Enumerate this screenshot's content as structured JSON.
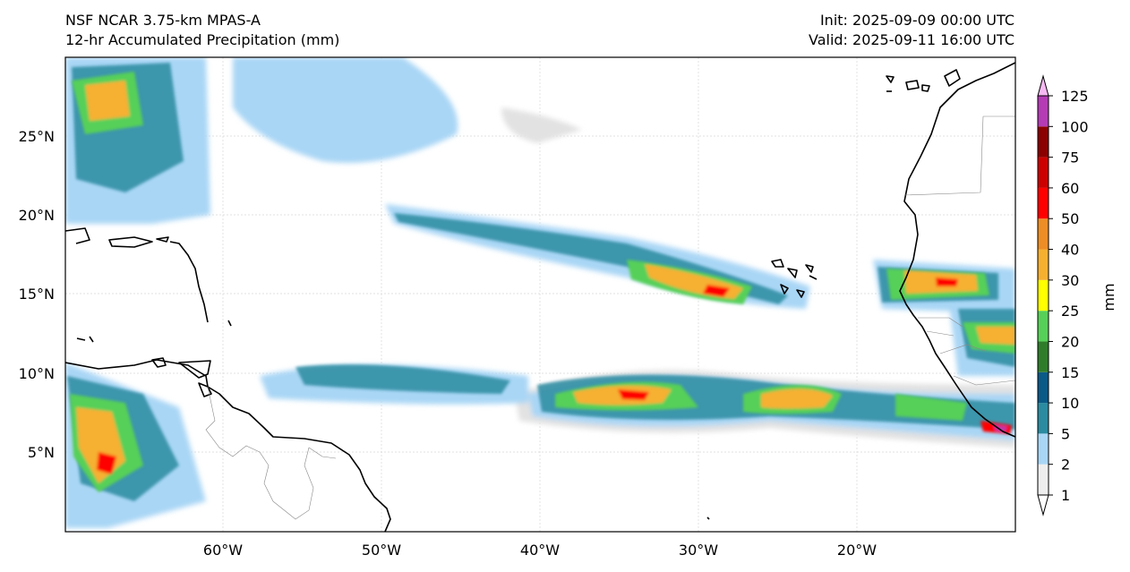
{
  "header": {
    "title_line1": "NSF NCAR 3.75-km MPAS-A",
    "title_line2": "12-hr Accumulated Precipitation (mm)",
    "init_line": "Init: 2025-09-09 00:00 UTC",
    "valid_line": "Valid: 2025-09-11 16:00 UTC"
  },
  "map": {
    "latitude_labels": [
      "25°N",
      "20°N",
      "15°N",
      "10°N",
      "5°N"
    ],
    "longitude_labels": [
      "60°W",
      "50°W",
      "40°W",
      "30°W",
      "20°W"
    ]
  },
  "colorbar": {
    "unit_label": "mm",
    "levels": [
      "1",
      "2",
      "5",
      "10",
      "15",
      "20",
      "25",
      "30",
      "40",
      "50",
      "60",
      "75",
      "100",
      "125"
    ],
    "colors": [
      "#eeeeee",
      "#a9d6f5",
      "#2b8ba0",
      "#0a5a87",
      "#2f7d2b",
      "#56d058",
      "#ffff00",
      "#f6b030",
      "#ed8d25",
      "#ff0000",
      "#cc0000",
      "#8b0000",
      "#b43bb4",
      "#f7b9f2"
    ]
  }
}
